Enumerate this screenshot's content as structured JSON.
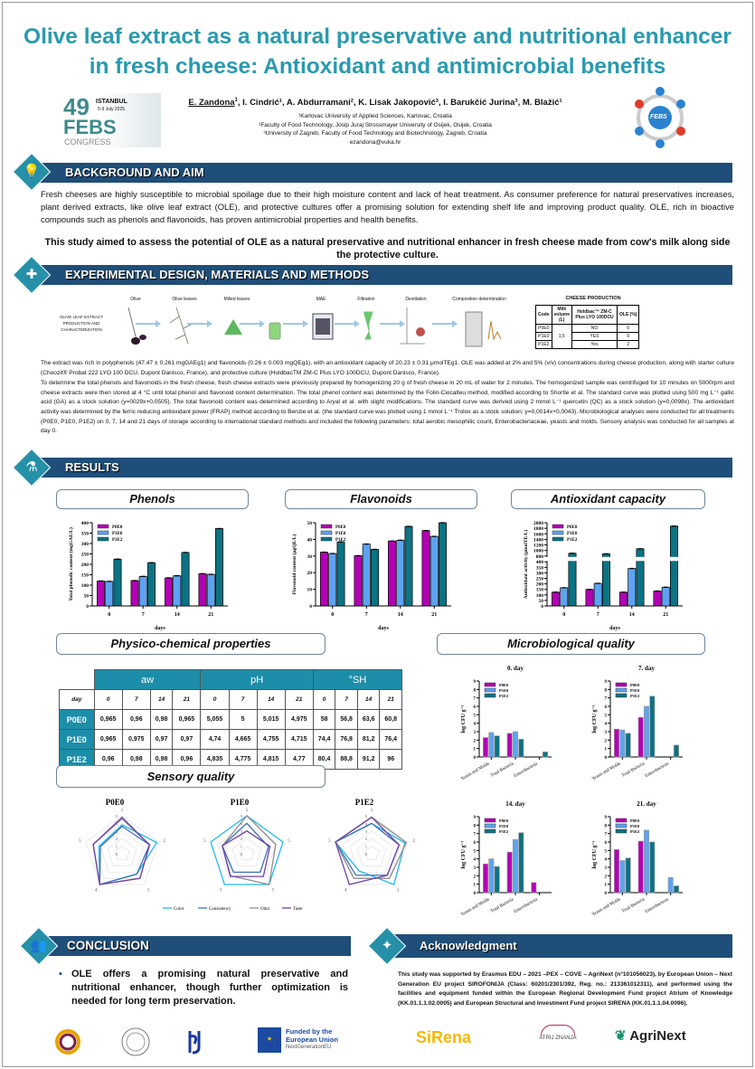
{
  "title": "Olive leaf extract as a natural preservative and nutritional enhancer in fresh cheese: Antioxidant and antimicrobial benefits",
  "congress_logo": {
    "number": "49",
    "city": "ISTANBUL",
    "dates": "5-9 July 2025",
    "name": "FEBS",
    "sub": "CONGRESS"
  },
  "febs_logo": "FEBS",
  "authors": {
    "first": "E. Zandona",
    "rest": ", I. Cindrić¹, A. Abdurramani², K. Lisak Jakopović³, I. Barukčić Jurina³, M. Blažić¹",
    "first_sup": "1",
    "affiliations": [
      "¹Karlovac University of Applied Sciences, Karlovac, Croatia",
      "²Faculty of Food Technology, Josip Juraj Strossmayer University of Osijek, Osijek, Croatia",
      "³University of Zagreb, Faculty of Food Technology and Biotechnology, Zagreb, Croatia"
    ],
    "email": "ezandona@vuka.hr"
  },
  "sections": {
    "background": "BACKGROUND AND AIM",
    "methods": "EXPERIMENTAL DESIGN, MATERIALS AND METHODS",
    "results": "RESULTS",
    "conclusion": "CONCLUSION",
    "acknowledgment": "Acknowledgment"
  },
  "background_text": "Fresh cheeses are highly susceptible to microbial spoilage due to their high moisture content and lack of heat treatment. As consumer preference for natural preservatives increases, plant derived extracts, like olive leaf extract (OLE), and protective cultures offer a promising solution for extending shelf life and improving product quality. OLE, rich in bioactive compounds such as phenols and flavonoids, has proven antimicrobial properties and health benefits.",
  "aim_text": "This study aimed to assess the potential of OLE as a natural preservative and nutritional enhancer in fresh cheese made from cow's milk along side the protective culture.",
  "process": {
    "label": "OLIVE LEAF EXTRACT PRODUCTION AND CHARACTERIZATION",
    "steps": [
      "Olive",
      "Olive leaves",
      "Milled leaves",
      "",
      "MAE",
      "Filtration",
      "Destilation",
      "Composition determination"
    ]
  },
  "cheese_production": {
    "title": "CHEESE PRODUCTION",
    "headers": [
      "Code",
      "Milk volume (L)",
      "Holdbac™ ZM-C Plus LYO 100DCU",
      "OLE (%)"
    ],
    "milk_volume": "1,5",
    "rows": [
      {
        "code": "P0E0",
        "culture": "NO",
        "ole": "0"
      },
      {
        "code": "P1E0",
        "culture": "YES",
        "ole": "0"
      },
      {
        "code": "P1E2",
        "culture": "Yes",
        "ole": "2"
      }
    ]
  },
  "methods_text": [
    "The extract was rich in polyphenols (47.47 ± 0.261 mgGAEg1) and flavonoids (0.26 ± 0.003 mgQEg1), with an antioxidant capacity of 20.23 ± 0.31 μmolTEg1. OLE was added at 2% and 5% (v/v) concentrations during cheese production, along with starter culture (Choozit® Probat 222 LYO 100 DCU, Dupont Danisco, France), and protective culture (HoldbacTM ZM-C Plus LYO 100DCU, Dupont Danisco, France).",
    "To determine the total phenols and flavonoids in the fresh cheese, fresh cheese extracts were previously prepared by homogenizing 20 g of fresh cheese in 20 mL of water for 2 minutes. The homogenized sample was centrifuged for 10 minutes on 5000rpm and cheese extracts were then stored at 4 °C until total phenol and flavonoid content determination. The total phenol content was determined by the Folin-Ciocalteu method, modified according to Shortle et al. The standard curve was plotted using 500 mg L⁻¹ gallic acid (GA) as a stock solution (y=0029x+0,0505). The total flavonoid content was determined according to Aryal et al. with slight modifications. The standard curve was derived using 2 mmol L⁻¹ quercetin (QC) as a stock solution (y=0,0098x). The antioxidant activity was determined by the ferric reducing antioxidant power (FRAP) method according to Benzie et al. (the standard curve was plotted using 1 mmol L⁻¹ Trolox as a stock solution; y=0,0014x+0,0043). Microbiological analyses were conducted for all treatments (P0E0, P1E0, P1E2) on 0, 7, 14 and 21 days of storage according to international standard methods and included the following parameters: total aerobic mesophilic count, Enterobacteriaceae, yeasts and molds. Sensory analysis was conducted for all samples at day 0."
  ],
  "result_titles": {
    "phenols": "Phenols",
    "flavonoids": "Flavonoids",
    "antioxidant": "Antioxidant capacity",
    "physico": "Physico-chemical properties",
    "micro": "Microbiological quality",
    "sensory": "Sensory quality"
  },
  "colors": {
    "P0E0": "#b400b4",
    "P1E0": "#5ea3f2",
    "P1E2": "#0b7383",
    "header": "#1f4e79",
    "accent": "#2a9aad"
  },
  "chart_data": [
    {
      "id": "phenols",
      "type": "bar",
      "categories": [
        "0",
        "7",
        "14",
        "21"
      ],
      "xlabel": "days",
      "ylabel": "Total phenolic content (mgGAE/L)",
      "ylim": [
        0,
        400
      ],
      "yticks": [
        0,
        50,
        100,
        150,
        200,
        250,
        300,
        350,
        400
      ],
      "legend": "top-left",
      "series": [
        {
          "name": "P0E0",
          "values": [
            120,
            122,
            135,
            155
          ]
        },
        {
          "name": "P1E0",
          "values": [
            118,
            142,
            145,
            152
          ]
        },
        {
          "name": "P1E2",
          "values": [
            225,
            208,
            257,
            372
          ]
        }
      ]
    },
    {
      "id": "flavonoids",
      "type": "bar",
      "categories": [
        "0",
        "7",
        "14",
        "21"
      ],
      "xlabel": "days",
      "ylabel": "Flavonoid content (µgQE/L)",
      "ylim": [
        0,
        50
      ],
      "yticks": [
        0,
        10,
        20,
        30,
        40,
        50
      ],
      "legend": "top-left",
      "series": [
        {
          "name": "P0E0",
          "values": [
            32.3,
            30.2,
            39,
            45.3
          ]
        },
        {
          "name": "P1E0",
          "values": [
            31.5,
            37.2,
            39.5,
            41.8
          ]
        },
        {
          "name": "P1E2",
          "values": [
            38.5,
            34,
            47.8,
            50
          ]
        }
      ]
    },
    {
      "id": "antioxidant",
      "type": "bar",
      "broken_axis": [
        400,
        800
      ],
      "categories": [
        "0",
        "7",
        "14",
        "21"
      ],
      "xlabel": "days",
      "ylabel": "Antioxidant activity (µmolTE/L)",
      "ylim": [
        0,
        2000
      ],
      "yticks": [
        0,
        50,
        100,
        150,
        200,
        250,
        300,
        350,
        400,
        800,
        1000,
        1200,
        1400,
        1600,
        1800,
        2000
      ],
      "legend": "top-left",
      "series": [
        {
          "name": "P0E0",
          "values": [
            125,
            150,
            125,
            135
          ]
        },
        {
          "name": "P1E0",
          "values": [
            165,
            205,
            340,
            170
          ]
        },
        {
          "name": "P1E2",
          "values": [
            900,
            880,
            1060,
            1880
          ]
        }
      ]
    },
    {
      "id": "micro-0",
      "type": "bar",
      "title": "0. day",
      "categories": [
        "Yeasts and Molds",
        "Total Bacteria",
        "Enterobacteria"
      ],
      "ylabel": "log CFU g⁻¹",
      "ylim": [
        0,
        9
      ],
      "yticks": [
        0,
        1,
        2,
        3,
        4,
        5,
        6,
        7,
        8,
        9
      ],
      "legend": "top-left",
      "series": [
        {
          "name": "P0E0",
          "values": [
            2.3,
            2.8,
            0
          ]
        },
        {
          "name": "P1E0",
          "values": [
            2.9,
            3.0,
            0
          ]
        },
        {
          "name": "P1E2",
          "values": [
            2.5,
            2.1,
            0.6
          ]
        }
      ]
    },
    {
      "id": "micro-7",
      "type": "bar",
      "title": "7. day",
      "categories": [
        "Yeasts and Molds",
        "Total Bacteria",
        "Enterobacteria"
      ],
      "ylabel": "log CFU g⁻¹",
      "ylim": [
        0,
        9
      ],
      "yticks": [
        0,
        1,
        2,
        3,
        4,
        5,
        6,
        7,
        8,
        9
      ],
      "legend": "top-left",
      "series": [
        {
          "name": "P0E0",
          "values": [
            3.3,
            4.7,
            0
          ]
        },
        {
          "name": "P1E0",
          "values": [
            3.2,
            6.0,
            0
          ]
        },
        {
          "name": "P1E2",
          "values": [
            2.8,
            7.2,
            1.4
          ]
        }
      ]
    },
    {
      "id": "micro-14",
      "type": "bar",
      "title": "14. day",
      "categories": [
        "Yeasts and Molds",
        "Total Bacteria",
        "Enterobacteria"
      ],
      "ylabel": "log CFU g⁻¹",
      "ylim": [
        0,
        9
      ],
      "yticks": [
        0,
        1,
        2,
        3,
        4,
        5,
        6,
        7,
        8,
        9
      ],
      "legend": "top-left",
      "series": [
        {
          "name": "P0E0",
          "values": [
            3.4,
            4.8,
            1.2
          ]
        },
        {
          "name": "P1E0",
          "values": [
            4.0,
            6.3,
            0
          ]
        },
        {
          "name": "P1E2",
          "values": [
            3.1,
            7.1,
            0
          ]
        }
      ]
    },
    {
      "id": "micro-21",
      "type": "bar",
      "title": "21. day",
      "categories": [
        "Yeasts and Molds",
        "Total Bacteria",
        "Enterobacteria"
      ],
      "ylabel": "log CFU g⁻¹",
      "ylim": [
        0,
        9
      ],
      "yticks": [
        0,
        1,
        2,
        3,
        4,
        5,
        6,
        7,
        8,
        9
      ],
      "legend": "top-left",
      "series": [
        {
          "name": "P0E0",
          "values": [
            5.1,
            6.1,
            0
          ]
        },
        {
          "name": "P1E0",
          "values": [
            3.8,
            7.4,
            1.8
          ]
        },
        {
          "name": "P1E2",
          "values": [
            4.1,
            6.0,
            0.8
          ]
        }
      ]
    },
    {
      "id": "radar-P0E0",
      "type": "radar",
      "title": "P0E0",
      "axes": [
        "1",
        "2",
        "3",
        "4",
        "5"
      ],
      "rticks": [
        "0",
        "1",
        "2",
        "3",
        "4",
        "5"
      ],
      "rlim": [
        0,
        5
      ],
      "legend": "bottom",
      "series": [
        {
          "name": "Color",
          "values": [
            3.8,
            4.8,
            3.3,
            5,
            3.2
          ]
        },
        {
          "name": "Consistency",
          "values": [
            3.6,
            3.8,
            3.3,
            5,
            3.0
          ]
        },
        {
          "name": "Odor",
          "values": [
            4.6,
            3.8,
            4.0,
            5,
            4.0
          ]
        },
        {
          "name": "Taste",
          "values": [
            4.8,
            3.8,
            4.0,
            5,
            4.0
          ]
        }
      ]
    },
    {
      "id": "radar-P1E0",
      "type": "radar",
      "title": "P1E0",
      "axes": [
        "5",
        "5",
        "5",
        "5",
        "5"
      ],
      "rticks": [
        "0",
        "1",
        "2",
        "3",
        "4",
        "5"
      ],
      "rlim": [
        0,
        5
      ],
      "legend": "bottom",
      "series": [
        {
          "name": "Color",
          "values": [
            5,
            5,
            5,
            5,
            5
          ]
        },
        {
          "name": "Consistency",
          "values": [
            4,
            3,
            3,
            3,
            3.4
          ]
        },
        {
          "name": "Odor",
          "values": [
            5,
            4,
            5,
            3.6,
            3.4
          ]
        },
        {
          "name": "Taste",
          "values": [
            3,
            3.2,
            3.7,
            3.7,
            3.4
          ]
        }
      ]
    },
    {
      "id": "radar-P1E2",
      "type": "radar",
      "title": "P1E2",
      "axes": [
        "1",
        "2",
        "3",
        "4",
        "5"
      ],
      "rticks": [
        "0",
        "1",
        "2",
        "3",
        "4",
        "5"
      ],
      "rlim": [
        0,
        5
      ],
      "legend": "bottom",
      "series": [
        {
          "name": "Color",
          "values": [
            4,
            4.6,
            5,
            2.8,
            5
          ]
        },
        {
          "name": "Consistency",
          "values": [
            4,
            3.8,
            3.5,
            3.5,
            5
          ]
        },
        {
          "name": "Odor",
          "values": [
            4.8,
            4.8,
            4,
            4,
            5
          ]
        },
        {
          "name": "Taste",
          "values": [
            4.8,
            3.8,
            3.5,
            5,
            5
          ]
        }
      ]
    }
  ],
  "radar_colors": {
    "Color": "#22b8f0",
    "Consistency": "#3a72b4",
    "Odor": "#8e8e8e",
    "Taste": "#7040a8"
  },
  "physico_table": {
    "groups": [
      "aw",
      "pH",
      "°SH"
    ],
    "day_label": "day",
    "days": [
      "0",
      "7",
      "14",
      "21"
    ],
    "rows": [
      {
        "code": "P0E0",
        "values": [
          "0,965",
          "0,96",
          "0,98",
          "0,965",
          "5,055",
          "5",
          "5,015",
          "4,975",
          "58",
          "56,8",
          "63,6",
          "60,8"
        ]
      },
      {
        "code": "P1E0",
        "values": [
          "0,965",
          "0,975",
          "0,97",
          "0,97",
          "4,74",
          "4,665",
          "4,755",
          "4,715",
          "74,4",
          "76,8",
          "81,2",
          "76,4"
        ]
      },
      {
        "code": "P1E2",
        "values": [
          "0,96",
          "0,98",
          "0,98",
          "0,96",
          "4,835",
          "4,775",
          "4,815",
          "4,77",
          "80,4",
          "88,8",
          "91,2",
          "96"
        ]
      }
    ]
  },
  "conclusion_text": "OLE offers a promising natural preservative and nutritional enhancer, though further optimization is needed for long term preservation.",
  "acknowledgment_text": "This study was supported by Erasmus EDU – 2021 –PEX – COVE – AgriNext (n°101056023), by European Union – Next Generation EU project SIROFONIJA (Class: 60201/2301/392, Reg. no.: 213361012311), and performed using the facilities and equipment funded within the European Regional Development Fund project Atrium of Knowledge (KK.01.1.1.02.0005) and European Structural and Investment Fund project SIRENA (KK.01.1.1.04.0096).",
  "footer": {
    "eu_line1": "Funded by the",
    "eu_line2": "European Union",
    "eu_line3": "NextGenerationEU",
    "sirena": "SiRena",
    "atrij": "ATRIJ ZNANJA",
    "agrinext": "AgriNext"
  }
}
